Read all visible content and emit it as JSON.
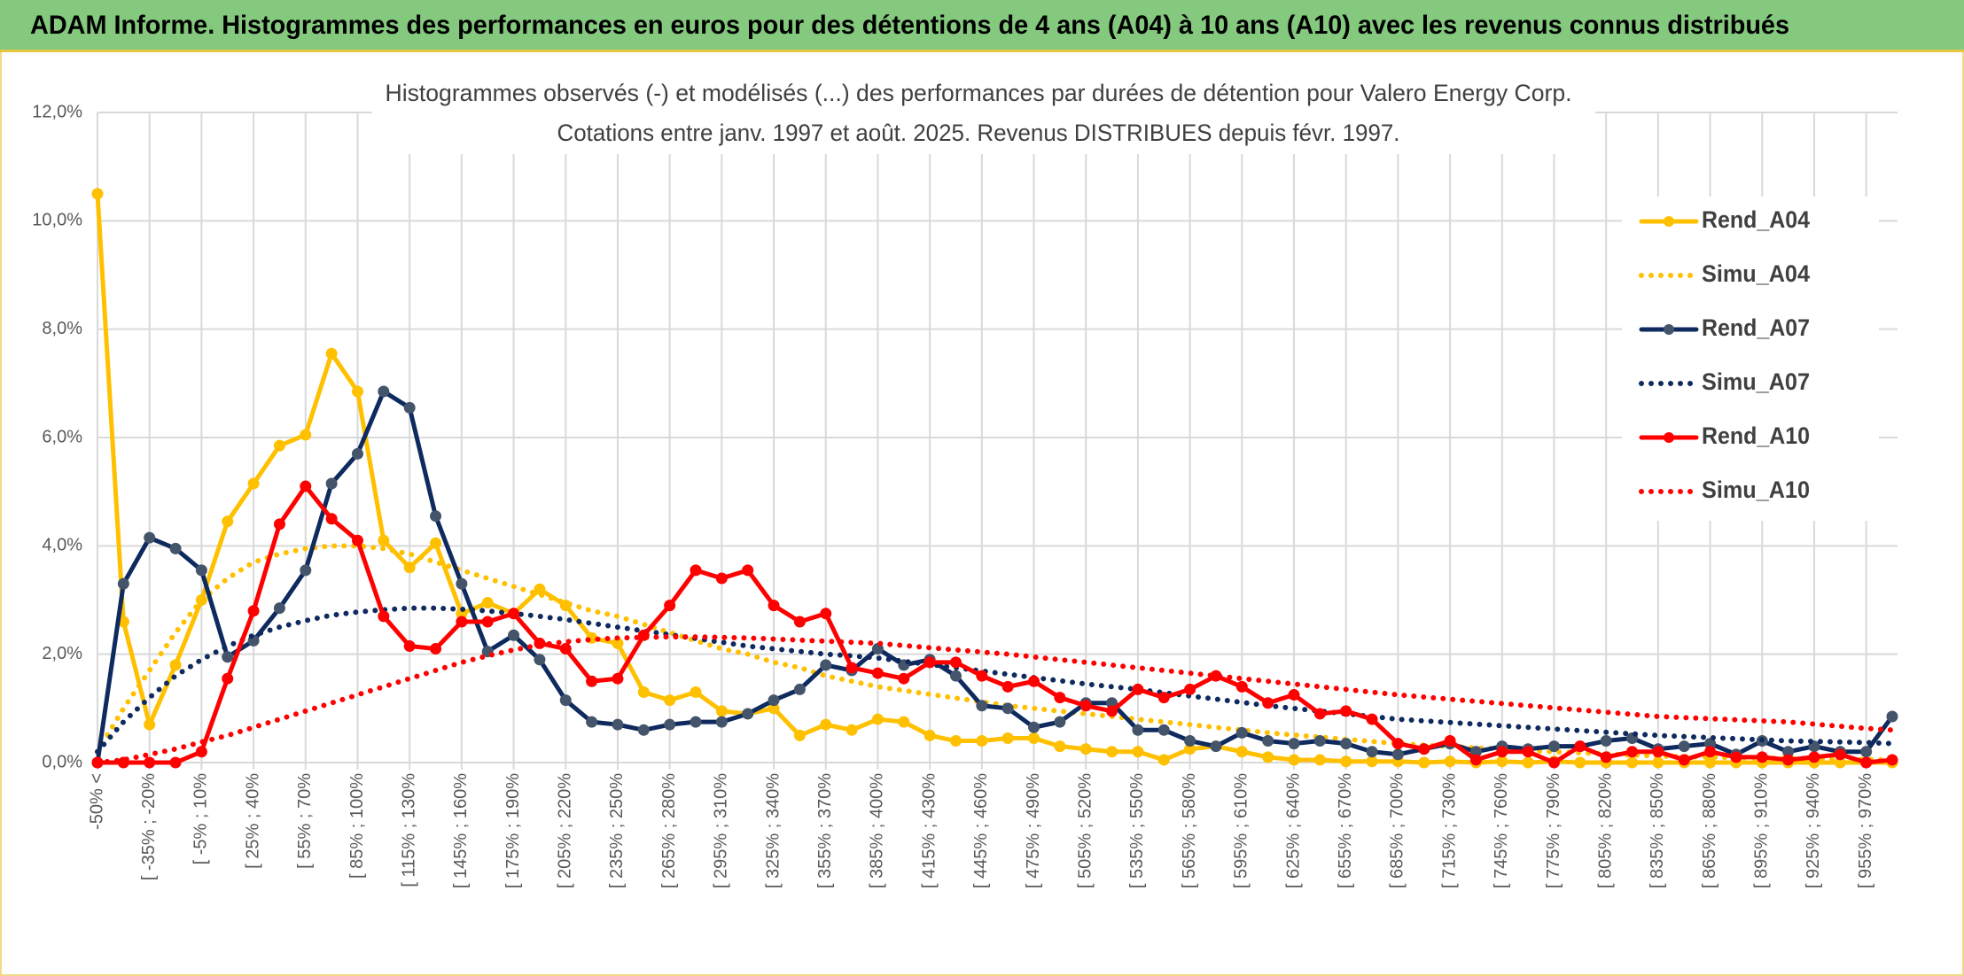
{
  "header": {
    "title": "ADAM Informe. Histogrammes des performances en euros pour des détentions de 4 ans (A04) à 10 ans (A10) avec les revenus connus distribués"
  },
  "chart_data": {
    "type": "line",
    "title": "Histogrammes observés (-) et modélisés (...) des performances par durées de détention pour Valero Energy Corp.",
    "subtitle": "Cotations entre janv. 1997 et août. 2025. Revenus DISTRIBUES depuis févr. 1997.",
    "categories": [
      "-50% <",
      null,
      "[ -35% ; -20%",
      null,
      "[ -5% ; 10%",
      null,
      "[ 25% ; 40%",
      null,
      "[ 55% ; 70%",
      null,
      "[ 85% ; 100%",
      null,
      "[ 115% ; 130%",
      null,
      "[ 145% ; 160%",
      null,
      "[ 175% ; 190%",
      null,
      "[ 205% ; 220%",
      null,
      "[ 235% ; 250%",
      null,
      "[ 265% ; 280%",
      null,
      "[ 295% ; 310%",
      null,
      "[ 325% ; 340%",
      null,
      "[ 355% ; 370%",
      null,
      "[ 385% ; 400%",
      null,
      "[ 415% ; 430%",
      null,
      "[ 445% ; 460%",
      null,
      "[ 475% ; 490%",
      null,
      "[ 505% ; 520%",
      null,
      "[ 535% ; 550%",
      null,
      "[ 565% ; 580%",
      null,
      "[ 595% ; 610%",
      null,
      "[ 625% ; 640%",
      null,
      "[ 655% ; 670%",
      null,
      "[ 685% ; 700%",
      null,
      "[ 715% ; 730%",
      null,
      "[ 745% ; 760%",
      null,
      "[ 775% ; 790%",
      null,
      "[ 805% ; 820%",
      null,
      "[ 835% ; 850%",
      null,
      "[ 865% ; 880%",
      null,
      "[ 895% ; 910%",
      null,
      "[ 925% ; 940%",
      null,
      "[ 955% ; 970%",
      null
    ],
    "series": [
      {
        "name": "Rend_A04",
        "color": "#ffc000",
        "line_style": "solid",
        "markers": true,
        "values": [
          10.5,
          2.6,
          0.7,
          1.8,
          3.0,
          4.45,
          5.15,
          5.85,
          6.05,
          7.55,
          6.85,
          4.1,
          3.6,
          4.05,
          2.75,
          2.95,
          2.75,
          3.2,
          2.9,
          2.3,
          2.2,
          1.3,
          1.15,
          1.3,
          0.95,
          0.9,
          1.0,
          0.5,
          0.7,
          0.6,
          0.8,
          0.75,
          0.5,
          0.4,
          0.4,
          0.45,
          0.45,
          0.3,
          0.25,
          0.2,
          0.2,
          0.05,
          0.25,
          0.3,
          0.2,
          0.1,
          0.05,
          0.05,
          0.02,
          0.02,
          0.02,
          0.0,
          0.02,
          0.0,
          0.02,
          0.0,
          0.02,
          0.0,
          0.0,
          0.0,
          0.0,
          0.0,
          0.0,
          0.0,
          0.0,
          0.0,
          0.0,
          0.0,
          0.0,
          0.0
        ]
      },
      {
        "name": "Simu_A04",
        "color": "#ffc000",
        "line_style": "dotted",
        "markers": false,
        "values": [
          0.2,
          1.0,
          1.7,
          2.4,
          3.0,
          3.4,
          3.7,
          3.85,
          3.95,
          4.0,
          4.0,
          3.95,
          3.85,
          3.7,
          3.55,
          3.4,
          3.25,
          3.1,
          2.95,
          2.8,
          2.7,
          2.55,
          2.4,
          2.25,
          2.1,
          2.0,
          1.85,
          1.75,
          1.6,
          1.5,
          1.4,
          1.33,
          1.26,
          1.19,
          1.12,
          1.05,
          1.0,
          0.95,
          0.9,
          0.85,
          0.8,
          0.75,
          0.7,
          0.65,
          0.6,
          0.55,
          0.51,
          0.47,
          0.43,
          0.39,
          0.35,
          0.32,
          0.3,
          0.27,
          0.25,
          0.22,
          0.2,
          0.18,
          0.16,
          0.14,
          0.12,
          0.11,
          0.1,
          0.09,
          0.08,
          0.08,
          0.07,
          0.06,
          0.06,
          0.05
        ]
      },
      {
        "name": "Rend_A07",
        "color": "#0e2a5e",
        "marker_color": "#44546a",
        "line_style": "solid",
        "markers": true,
        "values": [
          0,
          3.3,
          4.15,
          3.95,
          3.55,
          1.95,
          2.25,
          2.85,
          3.55,
          5.15,
          5.7,
          6.85,
          6.55,
          4.55,
          3.3,
          2.05,
          2.35,
          1.9,
          1.15,
          0.75,
          0.7,
          0.6,
          0.7,
          0.75,
          0.75,
          0.9,
          1.15,
          1.35,
          1.8,
          1.7,
          2.1,
          1.8,
          1.9,
          1.6,
          1.05,
          1.0,
          0.65,
          0.75,
          1.1,
          1.1,
          0.6,
          0.6,
          0.4,
          0.3,
          0.55,
          0.4,
          0.35,
          0.4,
          0.35,
          0.2,
          0.15,
          0.25,
          0.35,
          0.2,
          0.3,
          0.25,
          0.3,
          0.3,
          0.4,
          0.45,
          0.25,
          0.3,
          0.35,
          0.15,
          0.4,
          0.2,
          0.3,
          0.2,
          0.2,
          0.85
        ]
      },
      {
        "name": "Simu_A07",
        "color": "#0e2a5e",
        "line_style": "dotted",
        "markers": false,
        "values": [
          0.2,
          0.75,
          1.2,
          1.6,
          1.9,
          2.15,
          2.35,
          2.5,
          2.62,
          2.72,
          2.78,
          2.82,
          2.85,
          2.85,
          2.83,
          2.8,
          2.75,
          2.7,
          2.64,
          2.57,
          2.5,
          2.43,
          2.36,
          2.29,
          2.22,
          2.15,
          2.1,
          2.05,
          2.0,
          1.97,
          1.93,
          1.87,
          1.81,
          1.75,
          1.69,
          1.63,
          1.57,
          1.51,
          1.45,
          1.4,
          1.35,
          1.29,
          1.23,
          1.17,
          1.11,
          1.05,
          1.0,
          0.95,
          0.9,
          0.85,
          0.8,
          0.77,
          0.74,
          0.71,
          0.68,
          0.65,
          0.62,
          0.59,
          0.56,
          0.53,
          0.5,
          0.48,
          0.46,
          0.44,
          0.42,
          0.4,
          0.39,
          0.38,
          0.37,
          0.35
        ]
      },
      {
        "name": "Rend_A10",
        "color": "#ff0000",
        "line_style": "solid",
        "markers": true,
        "values": [
          0,
          0,
          0,
          0,
          0.2,
          1.55,
          2.8,
          4.4,
          5.1,
          4.5,
          4.1,
          2.7,
          2.15,
          2.1,
          2.6,
          2.6,
          2.75,
          2.2,
          2.1,
          1.5,
          1.55,
          2.35,
          2.9,
          3.55,
          3.4,
          3.55,
          2.9,
          2.6,
          2.75,
          1.75,
          1.65,
          1.55,
          1.85,
          1.85,
          1.6,
          1.4,
          1.5,
          1.2,
          1.05,
          0.95,
          1.35,
          1.2,
          1.35,
          1.6,
          1.4,
          1.1,
          1.25,
          0.9,
          0.95,
          0.8,
          0.35,
          0.25,
          0.4,
          0.05,
          0.2,
          0.2,
          0.0,
          0.3,
          0.1,
          0.2,
          0.2,
          0.05,
          0.2,
          0.1,
          0.1,
          0.05,
          0.1,
          0.15,
          0.0,
          0.05
        ]
      },
      {
        "name": "Simu_A10",
        "color": "#ff0000",
        "line_style": "dotted",
        "markers": false,
        "values": [
          0.0,
          0.05,
          0.15,
          0.25,
          0.38,
          0.5,
          0.65,
          0.8,
          0.95,
          1.1,
          1.25,
          1.4,
          1.55,
          1.7,
          1.85,
          1.97,
          2.08,
          2.17,
          2.23,
          2.27,
          2.3,
          2.31,
          2.32,
          2.32,
          2.31,
          2.3,
          2.28,
          2.26,
          2.24,
          2.22,
          2.2,
          2.16,
          2.12,
          2.08,
          2.04,
          2.0,
          1.95,
          1.9,
          1.85,
          1.8,
          1.75,
          1.7,
          1.65,
          1.6,
          1.55,
          1.5,
          1.45,
          1.4,
          1.35,
          1.3,
          1.25,
          1.21,
          1.17,
          1.13,
          1.09,
          1.05,
          1.01,
          0.97,
          0.93,
          0.89,
          0.85,
          0.83,
          0.81,
          0.79,
          0.77,
          0.75,
          0.71,
          0.67,
          0.63,
          0.6
        ]
      }
    ],
    "ylim": [
      0,
      12
    ],
    "yticks": [
      {
        "value": 0,
        "label": "0,0%"
      },
      {
        "value": 2,
        "label": "2,0%"
      },
      {
        "value": 4,
        "label": "4,0%"
      },
      {
        "value": 6,
        "label": "6,0%"
      },
      {
        "value": 8,
        "label": "8,0%"
      },
      {
        "value": 10,
        "label": "10,0%"
      },
      {
        "value": 12,
        "label": "12,0%"
      }
    ],
    "grid": true,
    "legend": "right"
  }
}
